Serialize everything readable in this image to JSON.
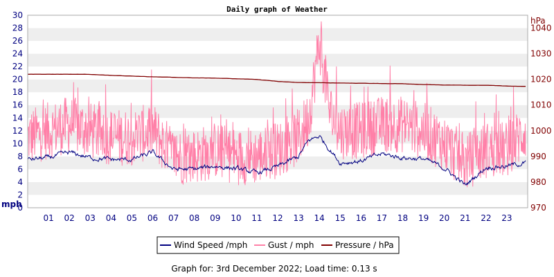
{
  "chart_data": {
    "type": "line",
    "title": "Daily graph of Weather",
    "left_axis": {
      "unit": "mph",
      "ylim": [
        0,
        30
      ],
      "ticks": [
        "0",
        "2",
        "4",
        "6",
        "8",
        "10",
        "12",
        "14",
        "16",
        "18",
        "20",
        "22",
        "24",
        "26",
        "28",
        "30"
      ],
      "color": "#000080"
    },
    "right_axis": {
      "unit": "hPa",
      "ylim": [
        970,
        1045
      ],
      "ticks": [
        "970",
        "980",
        "990",
        "1000",
        "1010",
        "1020",
        "1030",
        "1040"
      ],
      "color": "#800000"
    },
    "x_ticks": [
      "01",
      "02",
      "03",
      "04",
      "05",
      "06",
      "07",
      "08",
      "09",
      "10",
      "11",
      "12",
      "13",
      "14",
      "15",
      "16",
      "17",
      "18",
      "19",
      "20",
      "21",
      "22",
      "23"
    ],
    "xlim": [
      0,
      24
    ],
    "grid": "horizontal alternating bands",
    "legend_position": "bottom",
    "series": [
      {
        "name": "Wind Speed /mph",
        "axis": "left",
        "color": "#000080",
        "x": [
          0,
          1,
          2,
          3,
          4,
          5,
          6,
          7,
          8,
          9,
          10,
          11,
          12,
          13,
          13.5,
          14,
          15,
          16,
          17,
          18,
          19,
          20,
          21,
          22,
          23,
          23.9
        ],
        "values": [
          7.5,
          7.8,
          8.6,
          7.8,
          7.5,
          7.5,
          8.6,
          6.0,
          6.0,
          6.5,
          6.1,
          5.4,
          6.4,
          8.0,
          10.5,
          11.2,
          7.0,
          7.3,
          8.4,
          7.8,
          7.6,
          6.2,
          3.5,
          6.3,
          6.5,
          7.0
        ]
      },
      {
        "name": "Gust / mph",
        "axis": "left",
        "color": "#ff80a8",
        "x": [
          0,
          1,
          2,
          3,
          4,
          5,
          6,
          7,
          8,
          9,
          10,
          11,
          12,
          13,
          13.5,
          14,
          14.5,
          15,
          16,
          17,
          18,
          19,
          20,
          21,
          22,
          23,
          23.9
        ],
        "values": [
          11,
          12,
          13,
          12,
          11,
          11,
          12,
          8,
          8,
          9,
          8,
          8,
          9,
          11,
          14,
          26,
          15,
          12,
          12,
          13,
          13,
          12,
          10,
          7,
          9,
          9,
          12
        ]
      },
      {
        "name": "Pressure / hPa",
        "axis": "right",
        "color": "#800000",
        "x": [
          0,
          2.8,
          4,
          6,
          8,
          9,
          11,
          12,
          13,
          14,
          16,
          18,
          19,
          20,
          22,
          23,
          23.9
        ],
        "values": [
          1022,
          1022,
          1021.6,
          1021,
          1020.6,
          1020.5,
          1020,
          1019.2,
          1018.8,
          1018.7,
          1018.5,
          1018.3,
          1018,
          1017.8,
          1017.7,
          1017.4,
          1017.3
        ]
      }
    ]
  },
  "footer_text": "Graph for: 3rd December 2022; Load time: 0.13 s"
}
